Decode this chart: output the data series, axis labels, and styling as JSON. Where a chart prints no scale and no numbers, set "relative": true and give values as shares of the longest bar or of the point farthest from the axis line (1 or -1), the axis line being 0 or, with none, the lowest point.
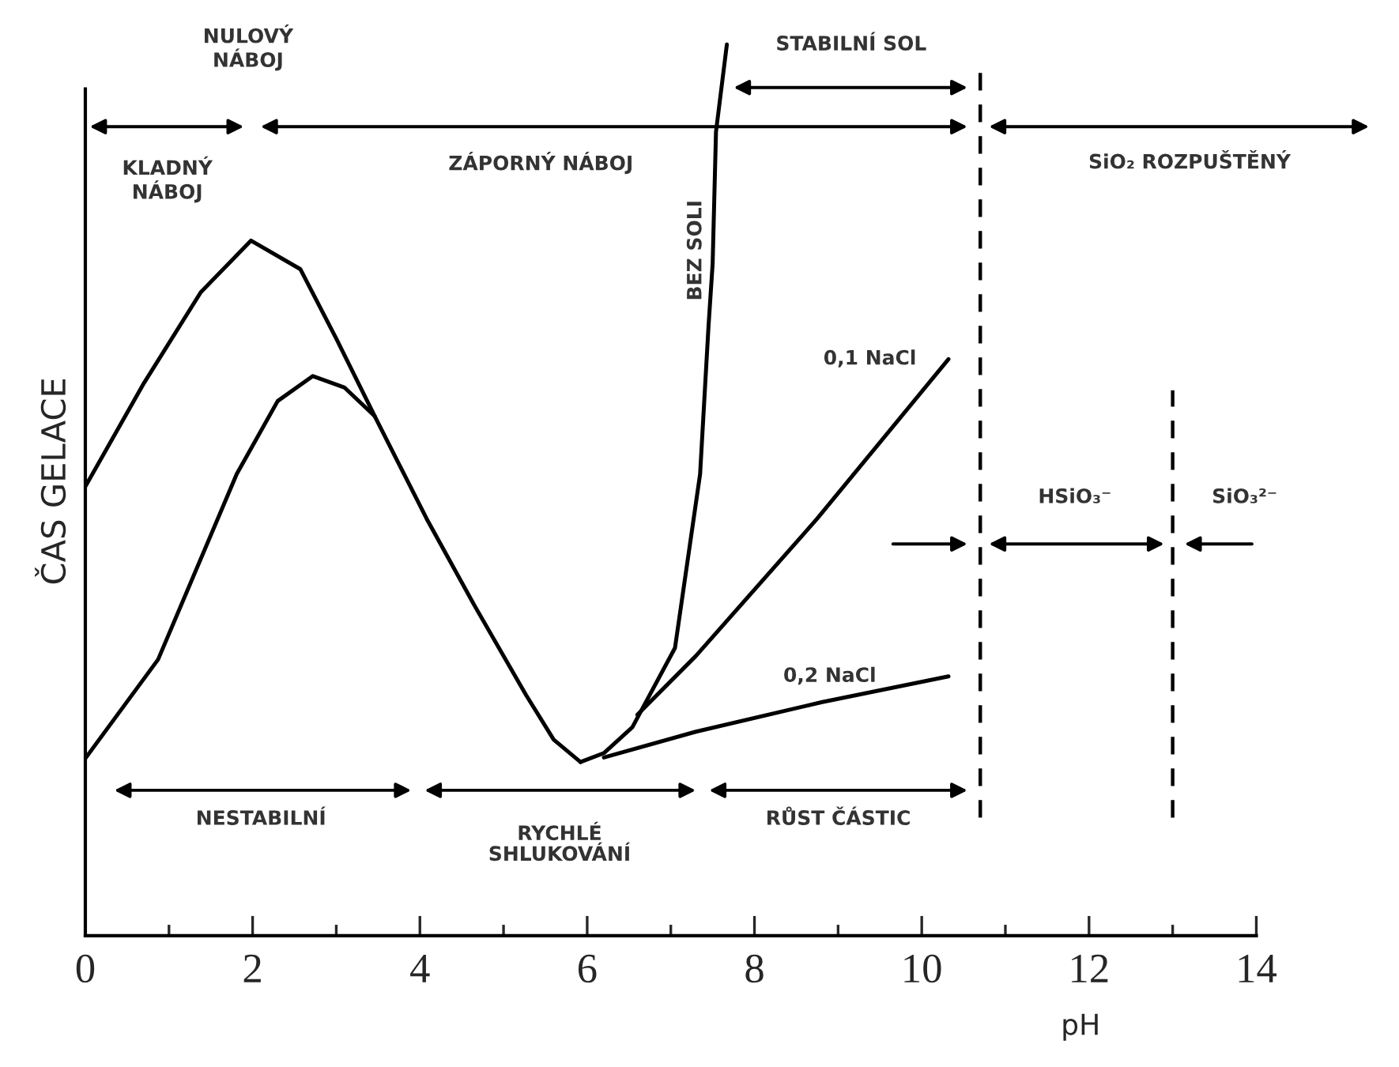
{
  "chart_data": {
    "type": "line",
    "relative": true,
    "xlabel": "pH",
    "ylabel": "ČAS GELACE",
    "xlim": [
      0,
      14
    ],
    "xticks": [
      0,
      {
        "value": 1,
        "label": null
      },
      2,
      {
        "value": 3,
        "label": null
      },
      4,
      {
        "value": 5,
        "label": null
      },
      6,
      {
        "value": 7,
        "label": null
      },
      8,
      {
        "value": 9,
        "label": null
      },
      10,
      {
        "value": 11,
        "label": null
      },
      12,
      {
        "value": 13,
        "label": null
      },
      14
    ],
    "series": [
      {
        "color": "#000000",
        "x": [
          0,
          0.7,
          1.38,
          1.98,
          2.57,
          3.0,
          3.46
        ],
        "values": [
          0.504,
          0.62,
          0.722,
          0.78,
          0.748,
          0.67,
          0.583
        ]
      },
      {
        "color": "#000000",
        "x": [
          0,
          0.87,
          1.81,
          2.3,
          2.72,
          3.1,
          3.46,
          4.08,
          4.65,
          5.27,
          5.6,
          5.92
        ],
        "values": [
          0.199,
          0.31,
          0.518,
          0.6,
          0.628,
          0.615,
          0.583,
          0.468,
          0.371,
          0.27,
          0.22,
          0.195
        ]
      },
      {
        "name": "BEZ SOLI",
        "color": "#000000",
        "x": [
          5.92,
          6.2,
          6.54,
          7.05,
          7.35,
          7.45,
          7.5,
          7.54,
          7.67
        ],
        "values": [
          0.195,
          0.205,
          0.234,
          0.323,
          0.518,
          0.683,
          0.754,
          0.902,
          1.0
        ]
      },
      {
        "name": "0,1 NaCl",
        "color": "#000000",
        "x": [
          6.6,
          7.3,
          8.75,
          10.32
        ],
        "values": [
          0.248,
          0.314,
          0.468,
          0.647
        ]
      },
      {
        "name": "0,2 NaCl",
        "color": "#000000",
        "x": [
          6.2,
          7.3,
          8.8,
          10.32
        ],
        "values": [
          0.2,
          0.229,
          0.262,
          0.291
        ]
      }
    ],
    "ref_lines": [
      {
        "axis": "x",
        "value": 10.7,
        "line_style": "dashed"
      },
      {
        "axis": "x",
        "value": 13,
        "line_style": "dashed"
      }
    ],
    "annotations": [
      "NULOVÝ\nNÁBOJ",
      "KLADNÝ\nNÁBOJ",
      "ZÁPORNÝ NÁBOJ",
      "STABILNÍ SOL",
      "SiO₂ ROZPUŠTĚNÝ",
      "NESTABILNÍ",
      "RYCHLÉ\nSHLUKOVÁNÍ",
      "RŮST ČÁSTIC",
      "HSiO₃⁻",
      "SiO₃²⁻"
    ]
  }
}
